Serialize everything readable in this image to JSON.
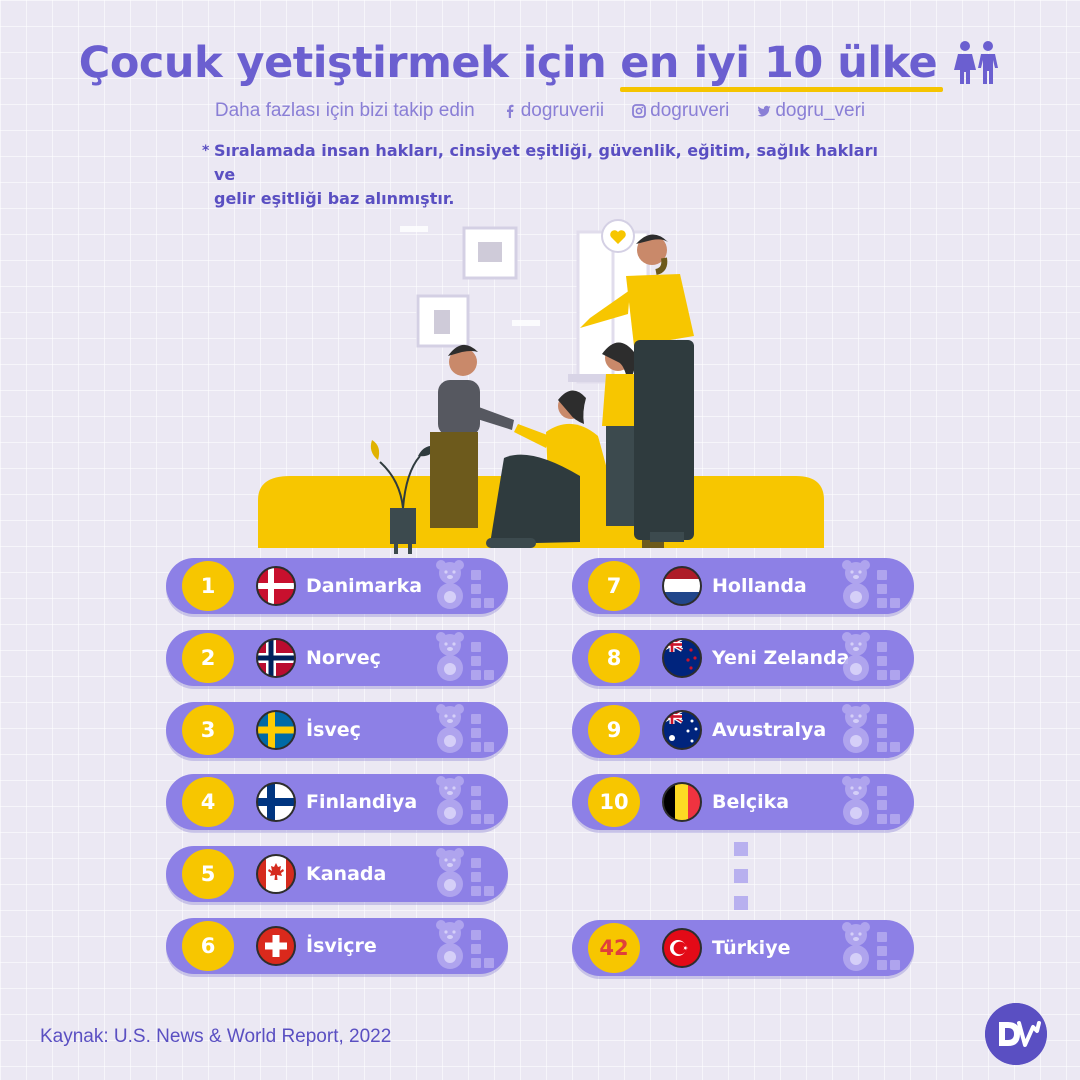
{
  "title": {
    "main": "Çocuk yetiştirmek için",
    "highlight": "en iyi 10 ülke",
    "icon": "kids-icon"
  },
  "follow": {
    "text": "Daha fazlası için bizi takip edin",
    "facebook": "dogruverii",
    "instagram": "dogruveri",
    "twitter": "dogru_veri"
  },
  "note": {
    "marker": "*",
    "line1": "Sıralamada insan hakları, cinsiyet eşitliği, güvenlik, eğitim, sağlık hakları ve",
    "line2": "gelir eşitliği baz alınmıştır."
  },
  "ranking": [
    {
      "rank": "1",
      "country": "Danimarka",
      "flag": "dk"
    },
    {
      "rank": "2",
      "country": "Norveç",
      "flag": "no"
    },
    {
      "rank": "3",
      "country": "İsveç",
      "flag": "se"
    },
    {
      "rank": "4",
      "country": "Finlandiya",
      "flag": "fi"
    },
    {
      "rank": "5",
      "country": "Kanada",
      "flag": "ca"
    },
    {
      "rank": "6",
      "country": "İsviçre",
      "flag": "ch"
    },
    {
      "rank": "7",
      "country": "Hollanda",
      "flag": "nl"
    },
    {
      "rank": "8",
      "country": "Yeni Zelanda",
      "flag": "nz"
    },
    {
      "rank": "9",
      "country": "Avustralya",
      "flag": "au"
    },
    {
      "rank": "10",
      "country": "Belçika",
      "flag": "be"
    },
    {
      "rank": "42",
      "country": "Türkiye",
      "flag": "tr"
    }
  ],
  "source": "Kaynak: U.S. News & World Report, 2022",
  "colors": {
    "accent": "#6b5fd0",
    "row": "#8d80e6",
    "rank_badge": "#f7c600",
    "highlight_rank": "#e0403a",
    "background": "#ebe8f3"
  }
}
